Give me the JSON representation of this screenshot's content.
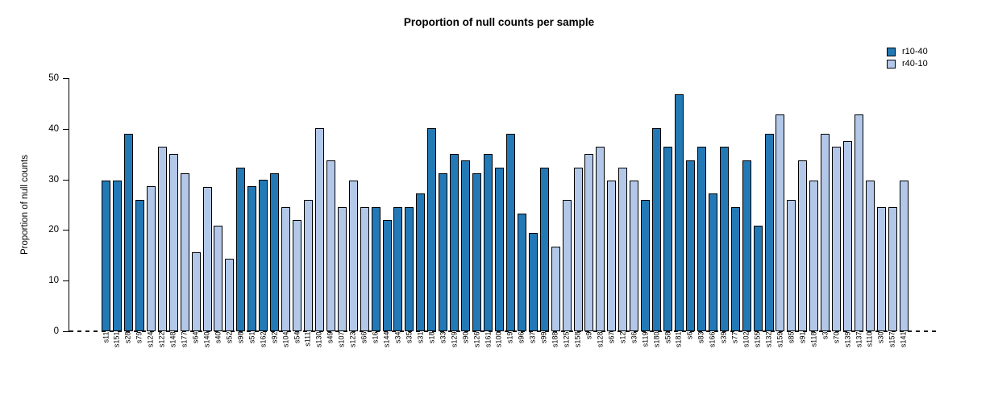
{
  "chart_data": {
    "type": "bar",
    "title": "Proportion of null counts per sample",
    "ylabel": "Proportion of null counts",
    "xlabel": "",
    "ylim": [
      0,
      50
    ],
    "yticks": [
      0,
      10,
      20,
      30,
      40,
      50
    ],
    "grid": false,
    "legend_position": "top-right",
    "legend": [
      {
        "name": "r10-40",
        "color": "#2379b5"
      },
      {
        "name": "r40-10",
        "color": "#b3c8e9"
      }
    ],
    "baseline_style": "dashed",
    "bars": [
      {
        "label": "s11",
        "value": 29.8,
        "series": "r10-40"
      },
      {
        "label": "s151",
        "value": 29.8,
        "series": "r10-40"
      },
      {
        "label": "s28",
        "value": 39.0,
        "series": "r10-40"
      },
      {
        "label": "s79",
        "value": 26.0,
        "series": "r10-40"
      },
      {
        "label": "s124",
        "value": 28.6,
        "series": "r40-10"
      },
      {
        "label": "s122",
        "value": 36.4,
        "series": "r40-10"
      },
      {
        "label": "s148",
        "value": 35.0,
        "series": "r40-10"
      },
      {
        "label": "s177",
        "value": 31.2,
        "series": "r40-10"
      },
      {
        "label": "s64",
        "value": 15.6,
        "series": "r40-10"
      },
      {
        "label": "s140",
        "value": 28.5,
        "series": "r40-10"
      },
      {
        "label": "s40",
        "value": 20.8,
        "series": "r40-10"
      },
      {
        "label": "s52",
        "value": 14.3,
        "series": "r40-10"
      },
      {
        "label": "s98",
        "value": 32.4,
        "series": "r10-40"
      },
      {
        "label": "s51",
        "value": 28.6,
        "series": "r10-40"
      },
      {
        "label": "s162",
        "value": 30.0,
        "series": "r10-40"
      },
      {
        "label": "s92",
        "value": 31.2,
        "series": "r10-40"
      },
      {
        "label": "s104",
        "value": 24.5,
        "series": "r40-10"
      },
      {
        "label": "s54",
        "value": 22.0,
        "series": "r40-10"
      },
      {
        "label": "s111",
        "value": 26.0,
        "series": "r40-10"
      },
      {
        "label": "s130",
        "value": 40.2,
        "series": "r40-10"
      },
      {
        "label": "s49",
        "value": 33.8,
        "series": "r40-10"
      },
      {
        "label": "s107",
        "value": 24.5,
        "series": "r40-10"
      },
      {
        "label": "s123",
        "value": 29.8,
        "series": "r40-10"
      },
      {
        "label": "s66",
        "value": 24.5,
        "series": "r40-10"
      },
      {
        "label": "s16",
        "value": 24.5,
        "series": "r10-40"
      },
      {
        "label": "s144",
        "value": 22.0,
        "series": "r10-40"
      },
      {
        "label": "s34",
        "value": 24.5,
        "series": "r10-40"
      },
      {
        "label": "s35",
        "value": 24.5,
        "series": "r10-40"
      },
      {
        "label": "s31",
        "value": 27.3,
        "series": "r10-40"
      },
      {
        "label": "s18",
        "value": 40.2,
        "series": "r10-40"
      },
      {
        "label": "s33",
        "value": 31.2,
        "series": "r10-40"
      },
      {
        "label": "s129",
        "value": 35.0,
        "series": "r10-40"
      },
      {
        "label": "s90",
        "value": 33.7,
        "series": "r10-40"
      },
      {
        "label": "s126",
        "value": 31.2,
        "series": "r10-40"
      },
      {
        "label": "s161",
        "value": 35.0,
        "series": "r10-40"
      },
      {
        "label": "s100",
        "value": 32.4,
        "series": "r10-40"
      },
      {
        "label": "s19",
        "value": 39.0,
        "series": "r10-40"
      },
      {
        "label": "s96",
        "value": 23.3,
        "series": "r10-40"
      },
      {
        "label": "s37",
        "value": 19.5,
        "series": "r10-40"
      },
      {
        "label": "s99",
        "value": 32.4,
        "series": "r10-40"
      },
      {
        "label": "s188",
        "value": 16.8,
        "series": "r40-10"
      },
      {
        "label": "s125",
        "value": 26.0,
        "series": "r40-10"
      },
      {
        "label": "s158",
        "value": 32.4,
        "series": "r40-10"
      },
      {
        "label": "s9",
        "value": 35.0,
        "series": "r40-10"
      },
      {
        "label": "s128",
        "value": 36.4,
        "series": "r40-10"
      },
      {
        "label": "s67",
        "value": 29.8,
        "series": "r40-10"
      },
      {
        "label": "s12",
        "value": 32.4,
        "series": "r40-10"
      },
      {
        "label": "s36",
        "value": 29.8,
        "series": "r40-10"
      },
      {
        "label": "s119",
        "value": 26.0,
        "series": "r10-40"
      },
      {
        "label": "s180",
        "value": 40.2,
        "series": "r10-40"
      },
      {
        "label": "s58",
        "value": 36.4,
        "series": "r10-40"
      },
      {
        "label": "s181",
        "value": 46.8,
        "series": "r10-40"
      },
      {
        "label": "s6",
        "value": 33.7,
        "series": "r10-40"
      },
      {
        "label": "s83",
        "value": 36.4,
        "series": "r10-40"
      },
      {
        "label": "s166",
        "value": 27.3,
        "series": "r10-40"
      },
      {
        "label": "s39",
        "value": 36.4,
        "series": "r10-40"
      },
      {
        "label": "s77",
        "value": 24.5,
        "series": "r10-40"
      },
      {
        "label": "s102",
        "value": 33.7,
        "series": "r10-40"
      },
      {
        "label": "s155",
        "value": 20.8,
        "series": "r10-40"
      },
      {
        "label": "s132",
        "value": 39.0,
        "series": "r10-40"
      },
      {
        "label": "s159",
        "value": 42.8,
        "series": "r40-10"
      },
      {
        "label": "s85",
        "value": 26.0,
        "series": "r40-10"
      },
      {
        "label": "s91",
        "value": 33.8,
        "series": "r40-10"
      },
      {
        "label": "s118",
        "value": 29.8,
        "series": "r40-10"
      },
      {
        "label": "s3",
        "value": 39.0,
        "series": "r40-10"
      },
      {
        "label": "s70",
        "value": 36.4,
        "series": "r40-10"
      },
      {
        "label": "s139",
        "value": 37.6,
        "series": "r40-10"
      },
      {
        "label": "s137",
        "value": 42.8,
        "series": "r40-10"
      },
      {
        "label": "s110",
        "value": 29.8,
        "series": "r40-10"
      },
      {
        "label": "s30",
        "value": 24.5,
        "series": "r40-10"
      },
      {
        "label": "s157",
        "value": 24.5,
        "series": "r40-10"
      },
      {
        "label": "s141",
        "value": 29.8,
        "series": "r40-10"
      }
    ]
  }
}
